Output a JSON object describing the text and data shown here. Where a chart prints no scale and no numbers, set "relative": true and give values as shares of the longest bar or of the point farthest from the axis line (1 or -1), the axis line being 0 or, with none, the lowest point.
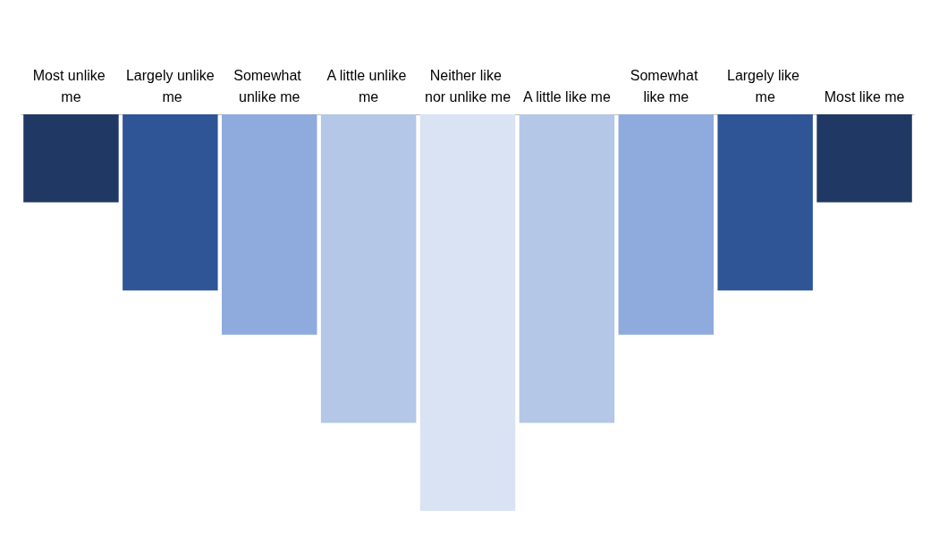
{
  "chart_data": {
    "type": "bar",
    "relative": true,
    "categories": [
      "Most unlike me",
      "Largely unlike me",
      "Somewhat unlike me",
      "A little unlike me",
      "Neither like nor unlike me",
      "A little like me",
      "Somewhat like me",
      "Largely like me",
      "Most like me"
    ],
    "values": [
      -0.222,
      -0.444,
      -0.556,
      -0.778,
      -1,
      -0.778,
      -0.556,
      -0.444,
      -0.222
    ],
    "colors": [
      "#203864",
      "#2f5597",
      "#8faadc",
      "#b4c7e7",
      "#dae3f3",
      "#b4c7e7",
      "#8faadc",
      "#2f5597",
      "#203864"
    ],
    "grid": false
  }
}
